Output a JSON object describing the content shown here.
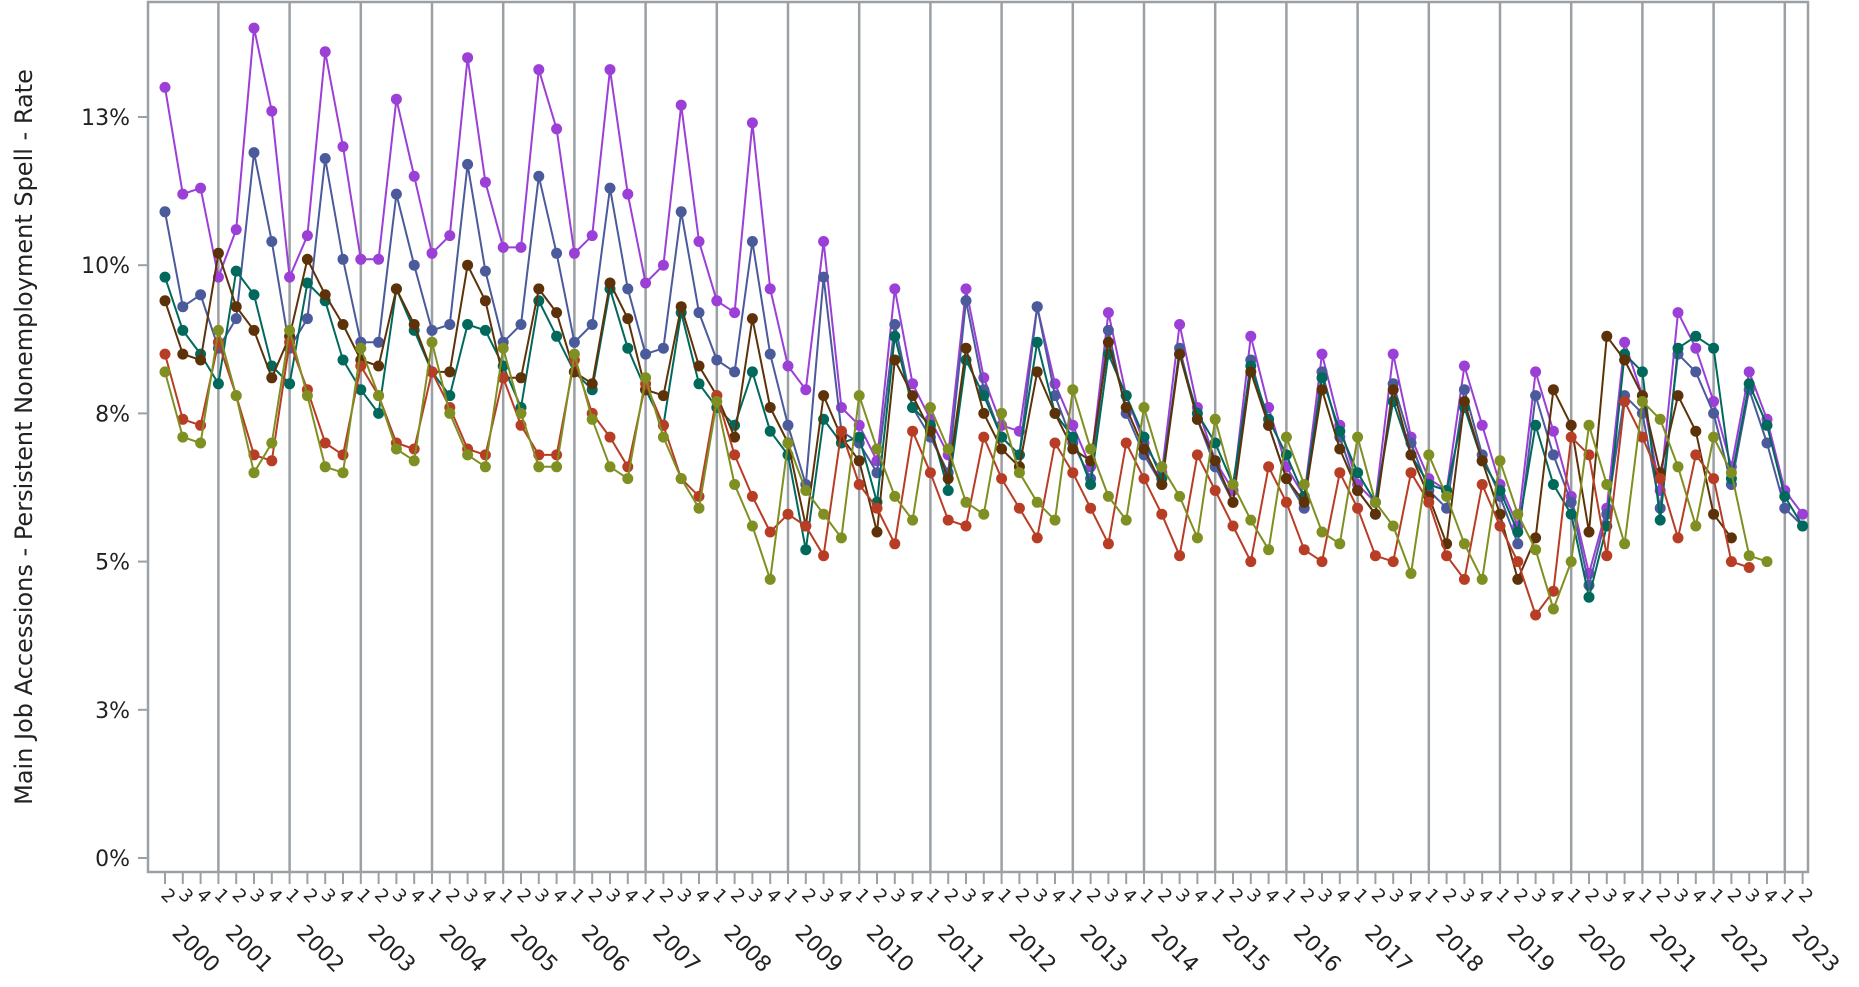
{
  "chart_data": {
    "type": "line",
    "ylabel": "Main Job Accessions - Persistent Nonemployment Spell - Rate",
    "yticks": [
      {
        "value": 0,
        "label": "0%"
      },
      {
        "value": 2.5,
        "label": "3%"
      },
      {
        "value": 5,
        "label": "5%"
      },
      {
        "value": 7.5,
        "label": "8%"
      },
      {
        "value": 10,
        "label": "10%"
      },
      {
        "value": 12.5,
        "label": "13%"
      }
    ],
    "ylim": [
      -0.3,
      14.5
    ],
    "start": {
      "year": 2000,
      "quarter": 2
    },
    "years": [
      2000,
      2001,
      2002,
      2003,
      2004,
      2005,
      2006,
      2007,
      2008,
      2009,
      2010,
      2011,
      2012,
      2013,
      2014,
      2015,
      2016,
      2017,
      2018,
      2019,
      2020,
      2021,
      2022,
      2023
    ],
    "quarter_labels": [
      "1",
      "2",
      "3",
      "4"
    ],
    "grid": "vertical lines at year boundaries",
    "legend": "none",
    "series": [
      {
        "color": "#9b3fd6",
        "values": [
          13.0,
          11.2,
          11.3,
          9.8,
          10.6,
          14.0,
          12.6,
          9.8,
          10.5,
          13.6,
          12.0,
          10.1,
          10.1,
          12.8,
          11.5,
          10.2,
          10.5,
          13.5,
          11.4,
          10.3,
          10.3,
          13.3,
          12.3,
          10.2,
          10.5,
          13.3,
          11.2,
          9.7,
          10.0,
          12.7,
          10.4,
          9.4,
          9.2,
          12.4,
          9.6,
          8.3,
          7.9,
          10.4,
          7.6,
          7.3,
          6.7,
          9.6,
          8.0,
          7.4,
          6.8,
          9.6,
          8.1,
          7.3,
          7.2,
          9.3,
          8.0,
          7.3,
          6.6,
          9.2,
          7.8,
          7.0,
          6.5,
          9.0,
          7.6,
          6.7,
          6.2,
          8.8,
          7.6,
          6.6,
          6.1,
          8.5,
          7.3,
          6.3,
          6.0,
          8.5,
          7.1,
          6.4,
          6.2,
          8.3,
          7.3,
          6.3,
          5.6,
          8.2,
          7.2,
          6.1,
          4.8,
          5.9,
          8.7,
          7.8,
          6.2,
          9.2,
          8.6,
          7.7,
          6.6,
          8.2,
          7.4,
          6.2,
          5.8
        ],
        "markers": [
          13.0,
          11.2,
          11.3,
          9.8,
          10.6,
          14.0,
          12.6,
          9.8,
          10.5,
          13.6,
          12.0,
          10.1,
          10.1,
          12.8,
          11.5,
          10.2,
          10.5,
          13.5,
          11.4,
          10.3,
          10.3,
          13.3,
          12.3,
          10.2,
          10.5,
          13.3,
          11.2,
          9.7,
          10.0,
          12.7,
          10.4,
          9.4,
          9.2,
          12.4,
          9.6,
          8.3,
          7.9,
          10.4,
          7.6,
          7.3,
          6.7,
          9.6,
          8.0,
          7.4,
          6.8,
          9.6,
          8.1,
          7.3,
          7.2,
          9.3,
          8.0,
          7.3,
          6.6,
          9.2,
          7.8,
          7.0,
          6.5,
          9.0,
          7.6,
          6.7,
          6.2,
          8.8,
          7.6,
          6.6,
          6.1,
          8.5,
          7.3,
          6.3,
          6.0,
          8.5,
          7.1,
          6.4,
          6.2,
          8.3,
          7.3,
          6.3,
          5.6,
          8.2,
          7.2,
          6.1,
          4.8,
          5.9,
          8.7,
          7.8,
          6.2,
          9.2,
          8.6,
          7.7,
          6.6,
          8.2,
          7.4,
          6.2,
          5.8
        ]
      },
      {
        "color": "#4a5a9a",
        "values": [
          10.9,
          9.3,
          9.5,
          8.6,
          9.1,
          11.9,
          10.4,
          8.6,
          9.1,
          11.8,
          10.1,
          8.7,
          8.7,
          11.2,
          10.0,
          8.9,
          9.0,
          11.7,
          9.9,
          8.7,
          9.0,
          11.5,
          10.2,
          8.7,
          9.0,
          11.3,
          9.6,
          8.5,
          8.6,
          10.9,
          9.2,
          8.4,
          8.2,
          10.4,
          8.5,
          7.3,
          6.3,
          9.8,
          7.2,
          7.0,
          6.5,
          9.0,
          7.6,
          7.1,
          6.5,
          9.4,
          7.9,
          7.1,
          6.8,
          9.3,
          7.8,
          7.0,
          6.4,
          8.9,
          7.5,
          6.8,
          6.3,
          8.6,
          7.4,
          6.6,
          6.0,
          8.4,
          7.3,
          6.4,
          5.9,
          8.2,
          7.1,
          6.2,
          5.8,
          8.0,
          7.0,
          6.2,
          5.9,
          7.9,
          6.8,
          6.1,
          5.3,
          7.8,
          6.8,
          6.0,
          4.6,
          5.8,
          7.8,
          7.5,
          5.9,
          8.5,
          8.2,
          7.5,
          6.3,
          7.9,
          7.0,
          5.9,
          5.6
        ]
      },
      {
        "color": "#00695c",
        "values": [
          9.8,
          8.9,
          8.5,
          8.0,
          9.9,
          9.5,
          8.3,
          8.0,
          9.7,
          9.4,
          8.4,
          7.9,
          7.5,
          9.6,
          8.9,
          8.2,
          7.8,
          9.0,
          8.9,
          8.3,
          7.6,
          9.4,
          8.8,
          8.2,
          7.9,
          9.6,
          8.6,
          7.9,
          7.3,
          9.2,
          8.0,
          7.6,
          7.3,
          8.2,
          7.2,
          6.8,
          5.2,
          7.4,
          7.0,
          7.1,
          6.0,
          8.8,
          7.6,
          7.3,
          6.2,
          8.4,
          7.8,
          7.1,
          6.8,
          8.7,
          7.5,
          7.1,
          6.3,
          8.5,
          7.8,
          7.1,
          6.4,
          8.5,
          7.5,
          7.0,
          6.3,
          8.3,
          7.4,
          6.8,
          6.1,
          8.1,
          7.2,
          6.5,
          6.0,
          7.7,
          6.8,
          6.3,
          6.2,
          7.6,
          6.7,
          6.2,
          5.5,
          7.3,
          6.3,
          5.8,
          4.4,
          5.6,
          8.5,
          8.2,
          5.7,
          8.6,
          8.8,
          8.6,
          6.4,
          8.0,
          7.3,
          6.1,
          5.6
        ]
      },
      {
        "color": "#5e3209",
        "values": [
          9.4,
          8.5,
          8.4,
          10.2,
          9.3,
          8.9,
          8.1,
          8.8,
          10.1,
          9.5,
          9.0,
          8.4,
          8.3,
          9.6,
          9.0,
          8.2,
          8.2,
          10.0,
          9.4,
          8.1,
          8.1,
          9.6,
          9.2,
          8.2,
          8.0,
          9.7,
          9.1,
          7.9,
          7.8,
          9.3,
          8.3,
          7.8,
          7.1,
          9.1,
          7.6,
          7.0,
          5.6,
          7.8,
          7.1,
          6.7,
          5.5,
          8.4,
          7.8,
          7.2,
          6.4,
          8.6,
          7.5,
          6.9,
          6.6,
          8.2,
          7.5,
          6.9,
          6.7,
          8.7,
          7.6,
          6.9,
          6.3,
          8.5,
          7.4,
          6.7,
          6.0,
          8.2,
          7.3,
          6.4,
          6.0,
          7.9,
          6.9,
          6.2,
          5.8,
          7.9,
          6.8,
          6.1,
          5.3,
          7.7,
          6.7,
          5.8,
          4.7,
          5.4,
          7.9,
          7.3,
          5.5,
          8.8,
          8.4,
          7.8,
          6.5,
          7.8,
          7.2,
          5.8,
          5.4
        ]
      },
      {
        "color": "#b83d25",
        "values": [
          8.5,
          7.4,
          7.3,
          8.7,
          7.8,
          6.8,
          6.7,
          8.7,
          7.9,
          7.0,
          6.8,
          8.3,
          7.8,
          7.0,
          6.9,
          8.2,
          7.6,
          6.9,
          6.8,
          8.1,
          7.3,
          6.8,
          6.8,
          8.4,
          7.5,
          7.1,
          6.6,
          8.0,
          7.3,
          6.4,
          6.1,
          7.8,
          6.8,
          6.1,
          5.5,
          5.8,
          5.6,
          5.1,
          7.2,
          6.3,
          5.9,
          5.3,
          7.2,
          6.5,
          5.7,
          5.6,
          7.1,
          6.4,
          5.9,
          5.4,
          7.0,
          6.5,
          5.9,
          5.3,
          7.0,
          6.4,
          5.8,
          5.1,
          6.8,
          6.2,
          5.6,
          5.0,
          6.6,
          6.0,
          5.2,
          5.0,
          6.5,
          5.9,
          5.1,
          5.0,
          6.5,
          6.0,
          5.1,
          4.7,
          6.3,
          5.6,
          5.0,
          4.1,
          4.5,
          7.1,
          6.8,
          5.1,
          7.7,
          7.1,
          6.4,
          5.4,
          6.8,
          6.4,
          5.0,
          4.9
        ]
      },
      {
        "color": "#7f8f21",
        "values": [
          8.2,
          7.1,
          7.0,
          8.9,
          7.8,
          6.5,
          7.0,
          8.9,
          7.8,
          6.6,
          6.5,
          8.6,
          7.8,
          6.9,
          6.7,
          8.7,
          7.5,
          6.8,
          6.6,
          8.6,
          7.5,
          6.6,
          6.6,
          8.5,
          7.4,
          6.6,
          6.4,
          8.1,
          7.1,
          6.4,
          5.9,
          7.7,
          6.3,
          5.6,
          4.7,
          7.0,
          6.2,
          5.8,
          5.4,
          7.8,
          6.9,
          6.1,
          5.7,
          7.6,
          6.9,
          6.0,
          5.8,
          7.5,
          6.5,
          6.0,
          5.7,
          7.9,
          6.9,
          6.1,
          5.7,
          7.6,
          6.6,
          6.1,
          5.4,
          7.4,
          6.3,
          5.7,
          5.2,
          7.1,
          6.3,
          5.5,
          5.3,
          7.1,
          6.0,
          5.6,
          4.8,
          6.8,
          6.1,
          5.3,
          4.7,
          6.7,
          5.8,
          5.2,
          4.2,
          5.0,
          7.3,
          6.3,
          5.3,
          7.7,
          7.4,
          6.6,
          5.6,
          7.1,
          6.5,
          5.1,
          5.0
        ]
      }
    ]
  }
}
